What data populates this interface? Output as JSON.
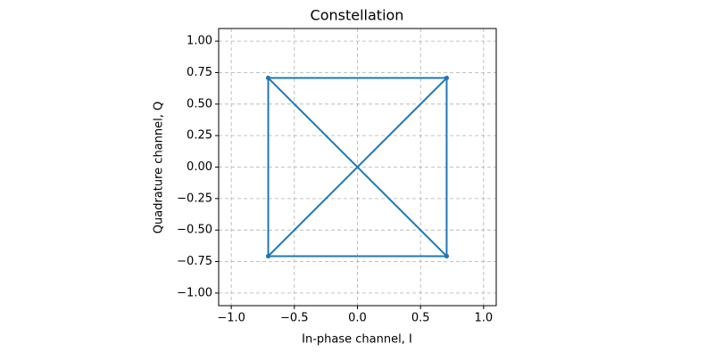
{
  "chart_data": {
    "type": "line",
    "title": "Constellation",
    "xlabel": "In-phase channel, I",
    "ylabel": "Quadrature channel, Q",
    "series": [
      {
        "color": "#1f77b4",
        "x": [
          -0.7071,
          0.7071,
          0.7071,
          -0.7071,
          -0.7071,
          0.7071,
          0.7071,
          -0.7071
        ],
        "values": [
          0.7071,
          0.7071,
          -0.7071,
          -0.7071,
          0.7071,
          -0.7071,
          0.7071,
          -0.7071
        ]
      }
    ],
    "xlim": [
      -1.1,
      1.1
    ],
    "ylim": [
      -1.1,
      1.1
    ],
    "xticks": [
      {
        "value": -1,
        "label": "−1.0"
      },
      {
        "value": -0.5,
        "label": "−0.5"
      },
      {
        "value": 0,
        "label": "0.0"
      },
      0.5,
      {
        "value": 1,
        "label": "1.0"
      }
    ],
    "yticks": [
      {
        "value": -1,
        "label": "−1.00"
      },
      {
        "value": -0.75,
        "label": "−0.75"
      },
      {
        "value": -0.5,
        "label": "−0.50"
      },
      {
        "value": -0.25,
        "label": "−0.25"
      },
      {
        "value": 0,
        "label": "0.00"
      },
      {
        "value": 0.25,
        "label": "0.25"
      },
      {
        "value": 0.5,
        "label": "0.50"
      },
      {
        "value": 0.75,
        "label": "0.75"
      },
      {
        "value": 1,
        "label": "1.00"
      }
    ],
    "grid": true
  }
}
